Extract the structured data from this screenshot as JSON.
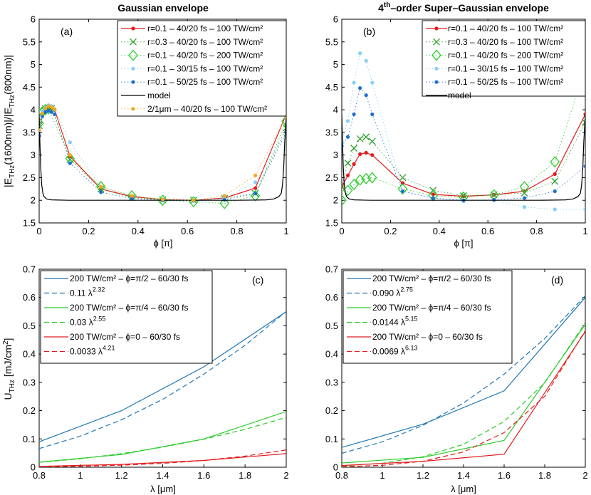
{
  "colors": {
    "red": "#e41a1c",
    "green": "#2ca02c",
    "blue": "#1f77b4",
    "lightblue": "#87cefa",
    "midblue": "#1f6fd0",
    "orange": "#f5a623",
    "black": "#000000"
  },
  "chart_data": [
    {
      "id": "a",
      "type": "line",
      "panel_label": "(a)",
      "title": "Gaussian envelope",
      "xlabel": "ϕ [π]",
      "ylabel": "|E_THz(1600nm)|/|E_THz(800nm)|",
      "xlim": [
        0,
        1
      ],
      "ylim": [
        1.5,
        6
      ],
      "xticks": [
        0,
        0.2,
        0.4,
        0.6,
        0.8,
        1
      ],
      "xtick_labels": [
        "0",
        "0.2",
        "0.4",
        "0.6",
        "0.8",
        "1"
      ],
      "yticks": [
        1.5,
        2,
        2.5,
        3,
        3.5,
        4,
        4.5,
        5,
        5.5,
        6
      ],
      "ytick_labels": [
        "1.5",
        "2",
        "2.5",
        "3",
        "3.5",
        "4",
        "4.5",
        "5",
        "5.5",
        "6"
      ],
      "legend_position": "top-right",
      "series": [
        {
          "name": "r=0.1 – 40/20 fs – 100 TW/cm²",
          "style": "line-dot",
          "color": "#e41a1c",
          "x": [
            0,
            0.0125,
            0.025,
            0.0375,
            0.05,
            0.0625,
            0.125,
            0.25,
            0.375,
            0.5,
            0.625,
            0.75,
            0.875,
            1
          ],
          "y": [
            3.55,
            3.9,
            4.02,
            4.05,
            4.04,
            4.0,
            2.97,
            2.25,
            2.08,
            2.02,
            2.0,
            2.05,
            2.27,
            3.9
          ]
        },
        {
          "name": "r=0.3 – 40/20 fs – 100 TW/cm²",
          "style": "x",
          "color": "#2ca02c",
          "x": [
            0,
            0.0125,
            0.025,
            0.0375,
            0.05,
            0.125,
            0.25,
            0.375,
            0.5,
            0.625,
            0.75,
            0.875,
            1
          ],
          "y": [
            3.65,
            3.95,
            4.03,
            4.05,
            4.03,
            2.9,
            2.25,
            2.06,
            2.01,
            2.0,
            2.04,
            2.15,
            3.6
          ]
        },
        {
          "name": "r=0.1 – 40/20 fs – 200 TW/cm²",
          "style": "diamond",
          "color": "#2ecc2e",
          "x": [
            0,
            0.0125,
            0.025,
            0.0375,
            0.125,
            0.25,
            0.375,
            0.5,
            0.625,
            0.75,
            0.875,
            1
          ],
          "y": [
            3.7,
            3.95,
            4.0,
            4.02,
            2.92,
            2.3,
            2.1,
            2.0,
            1.97,
            1.93,
            2.1,
            3.75
          ]
        },
        {
          "name": "r=0.1 – 30/15 fs – 100 TW/cm²",
          "style": "dot",
          "color": "#87cefa",
          "x": [
            0,
            0.0125,
            0.025,
            0.0375,
            0.05,
            0.0625,
            0.125,
            0.25,
            0.375,
            0.5,
            0.625,
            0.75,
            0.875,
            1
          ],
          "y": [
            3.45,
            3.98,
            4.05,
            4.1,
            4.08,
            4.02,
            3.28,
            2.3,
            2.1,
            2.02,
            2.0,
            2.04,
            2.4,
            3.5
          ]
        },
        {
          "name": "r=0.1 – 50/25 fs – 100 TW/cm²",
          "style": "dot",
          "color": "#1f6fd0",
          "x": [
            0,
            0.0125,
            0.025,
            0.0375,
            0.05,
            0.0625,
            0.125,
            0.25,
            0.375,
            0.5,
            0.625,
            0.75,
            0.875,
            1
          ],
          "y": [
            3.42,
            3.85,
            3.95,
            3.98,
            3.95,
            3.9,
            2.82,
            2.18,
            2.04,
            2.0,
            1.99,
            2.01,
            2.15,
            3.5
          ]
        },
        {
          "name": "model",
          "style": "line",
          "color": "#000000",
          "x": [
            0,
            0.003,
            0.006,
            0.01,
            0.015,
            0.02,
            0.03,
            0.05,
            0.08,
            0.12,
            0.2,
            0.3,
            0.5,
            0.7,
            0.8,
            0.88,
            0.92,
            0.95,
            0.97,
            0.98,
            0.985,
            0.99,
            0.994,
            0.997,
            1
          ],
          "y": [
            3.9,
            3.3,
            2.75,
            2.35,
            2.16,
            2.08,
            2.03,
            2.01,
            2.005,
            2.0,
            2.0,
            2.0,
            2.0,
            2.0,
            2.0,
            2.005,
            2.01,
            2.03,
            2.08,
            2.16,
            2.35,
            2.75,
            3.3,
            3.6,
            3.9
          ]
        },
        {
          "name": "2/1μm – 40/20 fs – 100 TW/cm²",
          "style": "dot",
          "color": "#f5a623",
          "x": [
            0,
            0.0125,
            0.025,
            0.0375,
            0.05,
            0.0625,
            0.125,
            0.25,
            0.375,
            0.5,
            0.625,
            0.75,
            0.875,
            1
          ],
          "y": [
            3.55,
            3.92,
            4.03,
            4.08,
            4.06,
            4.01,
            3.0,
            2.3,
            2.1,
            2.02,
            2.0,
            2.1,
            2.55,
            3.85
          ]
        }
      ]
    },
    {
      "id": "b",
      "type": "line",
      "panel_label": "(b)",
      "title_prefix": "4",
      "title_sup": "th",
      "title_rest": "–order Super–Gaussian envelope",
      "xlabel": "ϕ [π]",
      "ylabel": "",
      "xlim": [
        0,
        1
      ],
      "ylim": [
        1.5,
        6
      ],
      "xticks": [
        0,
        0.2,
        0.4,
        0.6,
        0.8,
        1
      ],
      "xtick_labels": [
        "0",
        "0.2",
        "0.4",
        "0.6",
        "0.8",
        "1"
      ],
      "yticks": [
        1.5,
        2,
        2.5,
        3,
        3.5,
        4,
        4.5,
        5,
        5.5,
        6
      ],
      "ytick_labels": [
        "1.5",
        "2",
        "2.5",
        "3",
        "3.5",
        "4",
        "4.5",
        "5",
        "5.5",
        "6"
      ],
      "legend_position": "top-right",
      "series": [
        {
          "name": "r=0.1 – 40/20 fs – 100 TW/cm²",
          "style": "line-dot",
          "color": "#e41a1c",
          "x": [
            0,
            0.025,
            0.05,
            0.075,
            0.1,
            0.125,
            0.25,
            0.375,
            0.5,
            0.625,
            0.75,
            0.875,
            1
          ],
          "y": [
            2.3,
            2.55,
            2.8,
            3.02,
            3.05,
            3.0,
            2.38,
            2.13,
            2.09,
            2.12,
            2.2,
            2.58,
            3.9
          ]
        },
        {
          "name": "r=0.3 – 40/20 fs – 100 TW/cm²",
          "style": "x",
          "color": "#2ca02c",
          "x": [
            0,
            0.025,
            0.05,
            0.075,
            0.1,
            0.125,
            0.25,
            0.375,
            0.5,
            0.625,
            0.75,
            0.875,
            1
          ],
          "y": [
            2.3,
            2.82,
            3.15,
            3.36,
            3.4,
            3.3,
            2.5,
            2.22,
            2.1,
            2.12,
            2.16,
            2.42,
            3.72
          ]
        },
        {
          "name": "r=0.1 – 40/20 fs – 200 TW/cm²",
          "style": "diamond",
          "color": "#2ecc2e",
          "x": [
            0,
            0.025,
            0.05,
            0.075,
            0.1,
            0.125,
            0.25,
            0.375,
            0.5,
            0.625,
            0.75,
            0.875,
            1
          ],
          "y": [
            2.0,
            2.22,
            2.35,
            2.45,
            2.48,
            2.5,
            2.25,
            2.1,
            2.07,
            2.12,
            2.3,
            2.85,
            4.93
          ]
        },
        {
          "name": "r=0.1 – 30/15 fs – 100 TW/cm²",
          "style": "dot",
          "color": "#87cefa",
          "x": [
            0,
            0.025,
            0.05,
            0.075,
            0.1,
            0.125,
            0.25,
            0.375,
            0.5,
            0.625,
            0.75,
            0.875,
            1
          ],
          "y": [
            3.3,
            3.75,
            4.6,
            5.25,
            5.08,
            4.6,
            2.2,
            2.05,
            1.98,
            2.0,
            1.85,
            1.8,
            1.8
          ]
        },
        {
          "name": "r=0.1 – 50/25 fs – 100 TW/cm²",
          "style": "dot",
          "color": "#1f6fd0",
          "x": [
            0,
            0.025,
            0.05,
            0.075,
            0.1,
            0.125,
            0.25,
            0.375,
            0.5,
            0.625,
            0.75,
            0.875,
            1
          ],
          "y": [
            3.2,
            3.4,
            3.9,
            4.48,
            4.32,
            3.9,
            2.2,
            2.05,
            2.0,
            2.01,
            2.05,
            2.2,
            2.75
          ]
        },
        {
          "name": "model",
          "style": "line",
          "color": "#000000",
          "x": [
            0,
            0.003,
            0.006,
            0.01,
            0.015,
            0.02,
            0.03,
            0.05,
            0.08,
            0.12,
            0.2,
            0.3,
            0.5,
            0.7,
            0.8,
            0.88,
            0.92,
            0.95,
            0.97,
            0.98,
            0.985,
            0.99,
            0.994,
            0.997,
            1
          ],
          "y": [
            3.9,
            3.3,
            2.75,
            2.35,
            2.16,
            2.08,
            2.03,
            2.01,
            2.005,
            2.0,
            2.0,
            2.0,
            2.0,
            2.0,
            2.0,
            2.005,
            2.01,
            2.03,
            2.08,
            2.16,
            2.35,
            2.75,
            3.3,
            3.6,
            3.9
          ]
        }
      ]
    },
    {
      "id": "c",
      "type": "line",
      "panel_label": "(c)",
      "xlabel": "λ [μm]",
      "ylabel": "U_THz [mJ/cm²]",
      "xlim": [
        0.8,
        2
      ],
      "ylim": [
        0,
        0.7
      ],
      "xticks": [
        0.8,
        1,
        1.2,
        1.4,
        1.6,
        1.8,
        2
      ],
      "xtick_labels": [
        "0.8",
        "1",
        "1.2",
        "1.4",
        "1.6",
        "1.8",
        "2"
      ],
      "yticks": [
        0,
        0.1,
        0.2,
        0.3,
        0.4,
        0.5,
        0.6,
        0.7
      ],
      "ytick_labels": [
        "0",
        "0.1",
        "0.2",
        "0.3",
        "0.4",
        "0.5",
        "0.6",
        "0.7"
      ],
      "legend_position": "top-left",
      "series": [
        {
          "name": "200 TW/cm² – ϕ=π/2 – 60/30 fs",
          "style": "line",
          "color": "#1f77b4",
          "x": [
            0.8,
            1.2,
            1.6,
            2.0
          ],
          "y": [
            0.09,
            0.2,
            0.355,
            0.55
          ]
        },
        {
          "name": "0.11 λ",
          "exp": "2.32",
          "style": "dashed",
          "color": "#1f77b4",
          "x": [
            0.8,
            1.0,
            1.2,
            1.4,
            1.6,
            1.8,
            2.0
          ],
          "y": [
            0.066,
            0.11,
            0.168,
            0.24,
            0.329,
            0.431,
            0.551
          ]
        },
        {
          "name": "200 TW/cm² – ϕ=π/4 – 60/30 fs",
          "style": "line",
          "color": "#2ecc2e",
          "x": [
            0.8,
            1.2,
            1.6,
            2.0
          ],
          "y": [
            0.018,
            0.045,
            0.1,
            0.197
          ]
        },
        {
          "name": "0.03 λ",
          "exp": "2.55",
          "style": "dashed",
          "color": "#2ecc2e",
          "x": [
            0.8,
            1.0,
            1.2,
            1.4,
            1.6,
            1.8,
            2.0
          ],
          "y": [
            0.017,
            0.03,
            0.048,
            0.071,
            0.099,
            0.134,
            0.176
          ]
        },
        {
          "name": "200 TW/cm² – ϕ=0 – 60/30 fs",
          "style": "line",
          "color": "#e41a1c",
          "x": [
            0.8,
            1.2,
            1.6,
            2.0
          ],
          "y": [
            0.003,
            0.01,
            0.024,
            0.048
          ]
        },
        {
          "name": "0.0033 λ",
          "exp": "4.21",
          "style": "dashed",
          "color": "#e41a1c",
          "x": [
            0.8,
            1.0,
            1.2,
            1.4,
            1.6,
            1.8,
            2.0
          ],
          "y": [
            0.0013,
            0.0033,
            0.0072,
            0.0136,
            0.0238,
            0.0392,
            0.0611
          ]
        }
      ]
    },
    {
      "id": "d",
      "type": "line",
      "panel_label": "(d)",
      "xlabel": "λ [μm]",
      "ylabel": "",
      "xlim": [
        0.8,
        2
      ],
      "ylim": [
        0,
        0.7
      ],
      "xticks": [
        0.8,
        1,
        1.2,
        1.4,
        1.6,
        1.8,
        2
      ],
      "xtick_labels": [
        "0.8",
        "1",
        "1.2",
        "1.4",
        "1.6",
        "1.8",
        "2"
      ],
      "yticks": [
        0,
        0.1,
        0.2,
        0.3,
        0.4,
        0.5,
        0.6,
        0.7
      ],
      "ytick_labels": [
        "0",
        "0.1",
        "0.2",
        "0.3",
        "0.4",
        "0.5",
        "0.6",
        "0.7"
      ],
      "legend_position": "top-left",
      "series": [
        {
          "name": "200 TW/cm² – ϕ=π/2 – 60/30 fs",
          "style": "line",
          "color": "#1f77b4",
          "x": [
            0.8,
            1.2,
            1.6,
            2.0
          ],
          "y": [
            0.07,
            0.152,
            0.27,
            0.6
          ]
        },
        {
          "name": "0.090 λ",
          "exp": "2.75",
          "style": "dashed",
          "color": "#1f77b4",
          "x": [
            0.8,
            1.0,
            1.2,
            1.4,
            1.6,
            1.8,
            2.0
          ],
          "y": [
            0.049,
            0.09,
            0.148,
            0.227,
            0.329,
            0.455,
            0.606
          ]
        },
        {
          "name": "200 TW/cm² – ϕ=π/4 – 60/30 fs",
          "style": "line",
          "color": "#2ecc2e",
          "x": [
            0.8,
            1.2,
            1.6,
            2.0
          ],
          "y": [
            0.015,
            0.035,
            0.095,
            0.505
          ]
        },
        {
          "name": "0.0144 λ",
          "exp": "5.15",
          "style": "dashed",
          "color": "#2ecc2e",
          "x": [
            0.8,
            1.0,
            1.2,
            1.4,
            1.6,
            1.8,
            2.0
          ],
          "y": [
            0.0046,
            0.0144,
            0.037,
            0.081,
            0.162,
            0.298,
            0.511
          ]
        },
        {
          "name": "200 TW/cm² – ϕ=0 – 60/30 fs",
          "style": "line",
          "color": "#e41a1c",
          "x": [
            0.8,
            1.2,
            1.6,
            2.0
          ],
          "y": [
            0.006,
            0.021,
            0.046,
            0.48
          ]
        },
        {
          "name": "0.0069 λ",
          "exp": "6.13",
          "style": "dashed",
          "color": "#e41a1c",
          "x": [
            0.8,
            1.0,
            1.2,
            1.4,
            1.6,
            1.8,
            2.0
          ],
          "y": [
            0.0016,
            0.0069,
            0.0211,
            0.0542,
            0.1223,
            0.2502,
            0.4831
          ]
        }
      ]
    }
  ]
}
